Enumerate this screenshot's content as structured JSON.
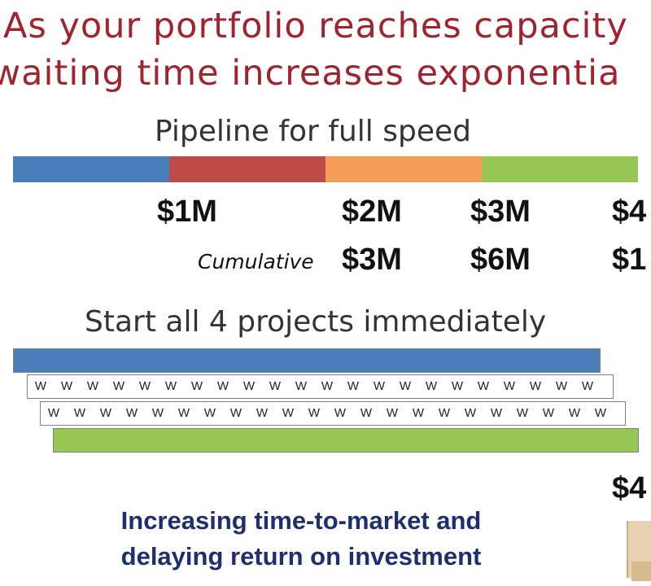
{
  "title": {
    "line1": "As your portfolio reaches capacity",
    "line2": "waiting time increases exponentia"
  },
  "pipeline": {
    "heading": "Pipeline for full speed",
    "segment_colors": [
      "#4a7ebb",
      "#be4b48",
      "#f59d56",
      "#98c655"
    ],
    "amounts": [
      "$1M",
      "$2M",
      "$3M",
      "$4"
    ],
    "cumulative_label": "Cumulative",
    "cumulative": [
      "$3M",
      "$6M",
      "$1"
    ]
  },
  "projects": {
    "heading": "Start all 4 projects immediately",
    "cell_label": "W",
    "rows": [
      {
        "color": "#4a7ebb"
      },
      {
        "color": "#c0111c"
      },
      {
        "color": "#f59d56"
      },
      {
        "color": "#98c655"
      }
    ]
  },
  "side_amount": "$4",
  "footer": {
    "line1": "Increasing time-to-market and",
    "line2": "delaying return on investment"
  }
}
